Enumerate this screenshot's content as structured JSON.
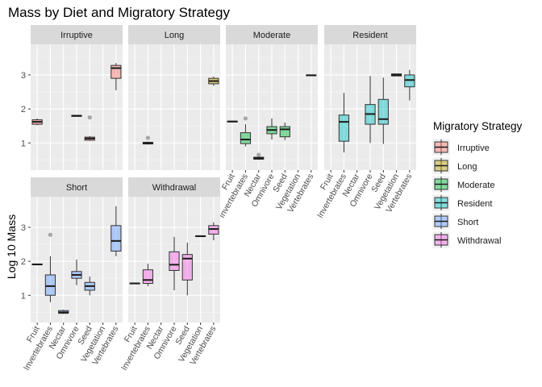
{
  "chart_data": {
    "type": "boxplot",
    "title": "Mass by Diet and Migratory Strategy",
    "xlabel": "",
    "ylabel": "Log 10 Mass",
    "ylim": [
      0.2,
      3.9
    ],
    "yticks": [
      1,
      2,
      3
    ],
    "grid": true,
    "legend_title": "Migratory Strategy",
    "legend_position": "right",
    "categories": [
      "Fruit",
      "Invertebrates",
      "Nectar",
      "Omnivore",
      "Seed",
      "Vegetation",
      "Vertebrates"
    ],
    "series": [
      {
        "name": "Irruptive",
        "color": "#F8766D",
        "boxes": [
          {
            "category": "Fruit",
            "lower": 1.52,
            "q1": 1.55,
            "median": 1.62,
            "q3": 1.68,
            "upper": 1.72,
            "outliers": []
          },
          {
            "category": "Omnivore",
            "lower": 1.78,
            "q1": 1.78,
            "median": 1.8,
            "q3": 1.81,
            "upper": 1.81,
            "outliers": []
          },
          {
            "category": "Seed",
            "lower": 1.06,
            "q1": 1.08,
            "median": 1.13,
            "q3": 1.17,
            "upper": 1.2,
            "outliers": [
              1.75
            ]
          },
          {
            "category": "Vertebrates",
            "lower": 2.55,
            "q1": 2.9,
            "median": 3.2,
            "q3": 3.28,
            "upper": 3.35,
            "outliers": []
          }
        ]
      },
      {
        "name": "Long",
        "color": "#B79F00",
        "boxes": [
          {
            "category": "Invertebrates",
            "lower": 0.95,
            "q1": 0.97,
            "median": 0.99,
            "q3": 1.02,
            "upper": 1.04,
            "outliers": [
              1.15
            ]
          },
          {
            "category": "Vertebrates",
            "lower": 2.68,
            "q1": 2.74,
            "median": 2.82,
            "q3": 2.9,
            "upper": 2.95,
            "outliers": []
          }
        ]
      },
      {
        "name": "Moderate",
        "color": "#00BA38",
        "boxes": [
          {
            "category": "Fruit",
            "lower": 1.62,
            "q1": 1.62,
            "median": 1.63,
            "q3": 1.64,
            "upper": 1.64,
            "outliers": []
          },
          {
            "category": "Invertebrates",
            "lower": 0.9,
            "q1": 0.98,
            "median": 1.1,
            "q3": 1.3,
            "upper": 1.55,
            "outliers": [
              1.72
            ]
          },
          {
            "category": "Nectar",
            "lower": 0.5,
            "q1": 0.52,
            "median": 0.55,
            "q3": 0.58,
            "upper": 0.6,
            "outliers": [
              0.65
            ]
          },
          {
            "category": "Omnivore",
            "lower": 1.1,
            "q1": 1.27,
            "median": 1.38,
            "q3": 1.48,
            "upper": 1.72,
            "outliers": []
          },
          {
            "category": "Seed",
            "lower": 1.08,
            "q1": 1.18,
            "median": 1.4,
            "q3": 1.48,
            "upper": 1.6,
            "outliers": []
          },
          {
            "category": "Vertebrates",
            "lower": 2.98,
            "q1": 2.98,
            "median": 2.99,
            "q3": 3.0,
            "upper": 3.0,
            "outliers": []
          }
        ]
      },
      {
        "name": "Resident",
        "color": "#00BFC4",
        "boxes": [
          {
            "category": "Invertebrates",
            "lower": 0.72,
            "q1": 1.05,
            "median": 1.62,
            "q3": 1.82,
            "upper": 2.47,
            "outliers": []
          },
          {
            "category": "Omnivore",
            "lower": 1.0,
            "q1": 1.55,
            "median": 1.85,
            "q3": 2.13,
            "upper": 2.97,
            "outliers": []
          },
          {
            "category": "Seed",
            "lower": 0.97,
            "q1": 1.55,
            "median": 1.7,
            "q3": 2.28,
            "upper": 2.92,
            "outliers": []
          },
          {
            "category": "Vegetation",
            "lower": 2.97,
            "q1": 2.97,
            "median": 3.0,
            "q3": 3.03,
            "upper": 3.03,
            "outliers": []
          },
          {
            "category": "Vertebrates",
            "lower": 2.25,
            "q1": 2.65,
            "median": 2.85,
            "q3": 3.0,
            "upper": 3.15,
            "outliers": []
          }
        ]
      },
      {
        "name": "Short",
        "color": "#619CFF",
        "boxes": [
          {
            "category": "Fruit",
            "lower": 1.9,
            "q1": 1.9,
            "median": 1.91,
            "q3": 1.92,
            "upper": 1.92,
            "outliers": []
          },
          {
            "category": "Invertebrates",
            "lower": 0.8,
            "q1": 1.0,
            "median": 1.27,
            "q3": 1.6,
            "upper": 2.15,
            "outliers": [
              2.78
            ]
          },
          {
            "category": "Nectar",
            "lower": 0.45,
            "q1": 0.47,
            "median": 0.5,
            "q3": 0.55,
            "upper": 0.58,
            "outliers": []
          },
          {
            "category": "Omnivore",
            "lower": 1.3,
            "q1": 1.5,
            "median": 1.6,
            "q3": 1.7,
            "upper": 2.05,
            "outliers": []
          },
          {
            "category": "Seed",
            "lower": 1.0,
            "q1": 1.15,
            "median": 1.27,
            "q3": 1.38,
            "upper": 1.55,
            "outliers": []
          },
          {
            "category": "Vertebrates",
            "lower": 2.15,
            "q1": 2.3,
            "median": 2.6,
            "q3": 3.05,
            "upper": 3.62,
            "outliers": []
          }
        ]
      },
      {
        "name": "Withdrawal",
        "color": "#F564E3",
        "boxes": [
          {
            "category": "Fruit",
            "lower": 1.34,
            "q1": 1.34,
            "median": 1.35,
            "q3": 1.36,
            "upper": 1.36,
            "outliers": []
          },
          {
            "category": "Invertebrates",
            "lower": 1.27,
            "q1": 1.35,
            "median": 1.45,
            "q3": 1.75,
            "upper": 1.93,
            "outliers": []
          },
          {
            "category": "Omnivore",
            "lower": 1.15,
            "q1": 1.73,
            "median": 1.9,
            "q3": 2.28,
            "upper": 2.72,
            "outliers": []
          },
          {
            "category": "Seed",
            "lower": 1.0,
            "q1": 1.45,
            "median": 2.08,
            "q3": 2.2,
            "upper": 2.55,
            "outliers": []
          },
          {
            "category": "Vegetation",
            "lower": 2.73,
            "q1": 2.73,
            "median": 2.74,
            "q3": 2.75,
            "upper": 2.75,
            "outliers": []
          },
          {
            "category": "Vertebrates",
            "lower": 2.62,
            "q1": 2.8,
            "median": 2.95,
            "q3": 3.05,
            "upper": 3.15,
            "outliers": []
          }
        ]
      }
    ]
  }
}
